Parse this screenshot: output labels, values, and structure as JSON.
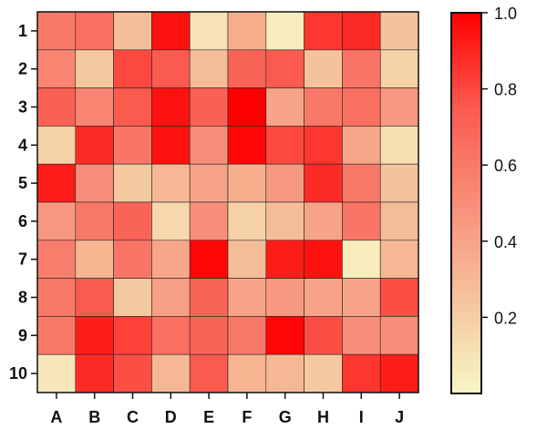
{
  "chart_data": {
    "type": "heatmap",
    "title": "",
    "xlabel": "",
    "ylabel": "",
    "x_categories": [
      "A",
      "B",
      "C",
      "D",
      "E",
      "F",
      "G",
      "H",
      "I",
      "J"
    ],
    "y_categories": [
      "1",
      "2",
      "3",
      "4",
      "5",
      "6",
      "7",
      "8",
      "9",
      "10"
    ],
    "values": [
      [
        0.6,
        0.65,
        0.28,
        0.95,
        0.1,
        0.35,
        0.05,
        0.85,
        0.88,
        0.25
      ],
      [
        0.55,
        0.22,
        0.8,
        0.75,
        0.28,
        0.7,
        0.75,
        0.25,
        0.62,
        0.18
      ],
      [
        0.72,
        0.55,
        0.75,
        0.95,
        0.72,
        1.0,
        0.4,
        0.6,
        0.65,
        0.45
      ],
      [
        0.18,
        0.88,
        0.62,
        0.95,
        0.5,
        0.98,
        0.8,
        0.85,
        0.38,
        0.12
      ],
      [
        0.92,
        0.5,
        0.22,
        0.3,
        0.4,
        0.35,
        0.45,
        0.88,
        0.6,
        0.25
      ],
      [
        0.45,
        0.6,
        0.7,
        0.15,
        0.5,
        0.18,
        0.28,
        0.4,
        0.62,
        0.28
      ],
      [
        0.58,
        0.32,
        0.62,
        0.38,
        0.98,
        0.28,
        0.92,
        0.95,
        0.05,
        0.3
      ],
      [
        0.6,
        0.75,
        0.22,
        0.42,
        0.7,
        0.4,
        0.45,
        0.4,
        0.4,
        0.78
      ],
      [
        0.6,
        0.92,
        0.82,
        0.65,
        0.7,
        0.6,
        0.98,
        0.78,
        0.5,
        0.5
      ],
      [
        0.08,
        0.88,
        0.78,
        0.3,
        0.75,
        0.32,
        0.3,
        0.22,
        0.85,
        0.92
      ]
    ],
    "colorscale": [
      "#f7f7c6",
      "#f5c39b",
      "#f88e79",
      "#fb5a4f",
      "#ff0000"
    ],
    "vmin": 0,
    "vmax": 1.0,
    "colorbar_ticks": [
      "0.2",
      "0.4",
      "0.6",
      "0.8",
      "1.0"
    ]
  }
}
